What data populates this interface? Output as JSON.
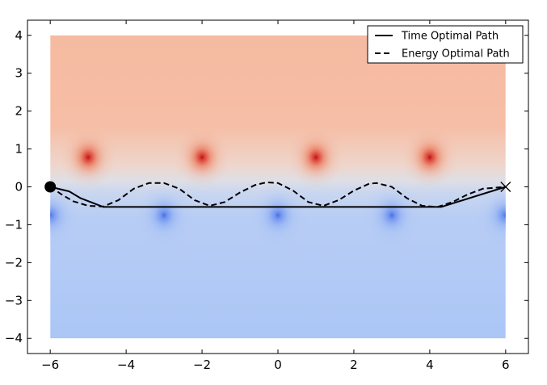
{
  "chart_data": {
    "type": "line",
    "xlim": [
      -6.6,
      6.6
    ],
    "ylim": [
      -4.4,
      4.4
    ],
    "grid": false,
    "legend_position": "top-right",
    "x_ticks": [
      -6,
      -4,
      -2,
      0,
      2,
      4,
      6
    ],
    "y_ticks": [
      -4,
      -3,
      -2,
      -1,
      0,
      1,
      2,
      3,
      4
    ],
    "x_tick_labels": [
      "−6",
      "−4",
      "−2",
      "0",
      "2",
      "4",
      "6"
    ],
    "y_tick_labels": [
      "−4",
      "−3",
      "−2",
      "−1",
      "0",
      "1",
      "2",
      "3",
      "4"
    ],
    "field": {
      "type": "heatmap",
      "x_range": [
        -6,
        6
      ],
      "y_range": [
        -4,
        4
      ],
      "colormap": "coolwarm",
      "background_top_color": "#f5bba1",
      "background_bottom_color": "#abc6f6",
      "warm_peaks": [
        [
          -5,
          0.78
        ],
        [
          -2,
          0.78
        ],
        [
          1,
          0.78
        ],
        [
          4,
          0.78
        ]
      ],
      "cool_peaks": [
        [
          -6,
          -0.75
        ],
        [
          -3,
          -0.75
        ],
        [
          0,
          -0.75
        ],
        [
          3,
          -0.75
        ],
        [
          6,
          -0.75
        ]
      ],
      "warm_color": "#d83a30",
      "cool_color": "#5f86ed"
    },
    "series": [
      {
        "name": "Time Optimal Path",
        "line_style": "solid",
        "color": "#000000",
        "x": [
          -6.0,
          -5.5,
          -5.2,
          -4.6,
          4.3,
          6.0
        ],
        "y": [
          0.0,
          -0.12,
          -0.3,
          -0.53,
          -0.53,
          0.0
        ]
      },
      {
        "name": "Energy Optimal Path",
        "line_style": "dashed",
        "color": "#000000",
        "x": [
          -6.0,
          -5.7,
          -5.4,
          -5.0,
          -4.6,
          -4.2,
          -3.8,
          -3.4,
          -3.0,
          -2.6,
          -2.2,
          -1.8,
          -1.4,
          -1.0,
          -0.6,
          -0.3,
          0.0,
          0.4,
          0.8,
          1.2,
          1.6,
          2.0,
          2.4,
          2.6,
          3.0,
          3.4,
          3.8,
          4.2,
          4.6,
          5.0,
          5.4,
          6.0
        ],
        "y": [
          0.0,
          -0.2,
          -0.38,
          -0.5,
          -0.52,
          -0.35,
          -0.05,
          0.1,
          0.1,
          -0.05,
          -0.35,
          -0.5,
          -0.4,
          -0.15,
          0.05,
          0.12,
          0.1,
          -0.1,
          -0.4,
          -0.5,
          -0.35,
          -0.1,
          0.08,
          0.1,
          0.0,
          -0.3,
          -0.5,
          -0.53,
          -0.4,
          -0.2,
          -0.05,
          0.0
        ]
      }
    ],
    "markers": [
      {
        "kind": "start",
        "shape": "circle",
        "x": -6.0,
        "y": 0.0,
        "color": "#000000"
      },
      {
        "kind": "end",
        "shape": "x",
        "x": 6.0,
        "y": 0.0,
        "color": "#000000"
      }
    ]
  }
}
